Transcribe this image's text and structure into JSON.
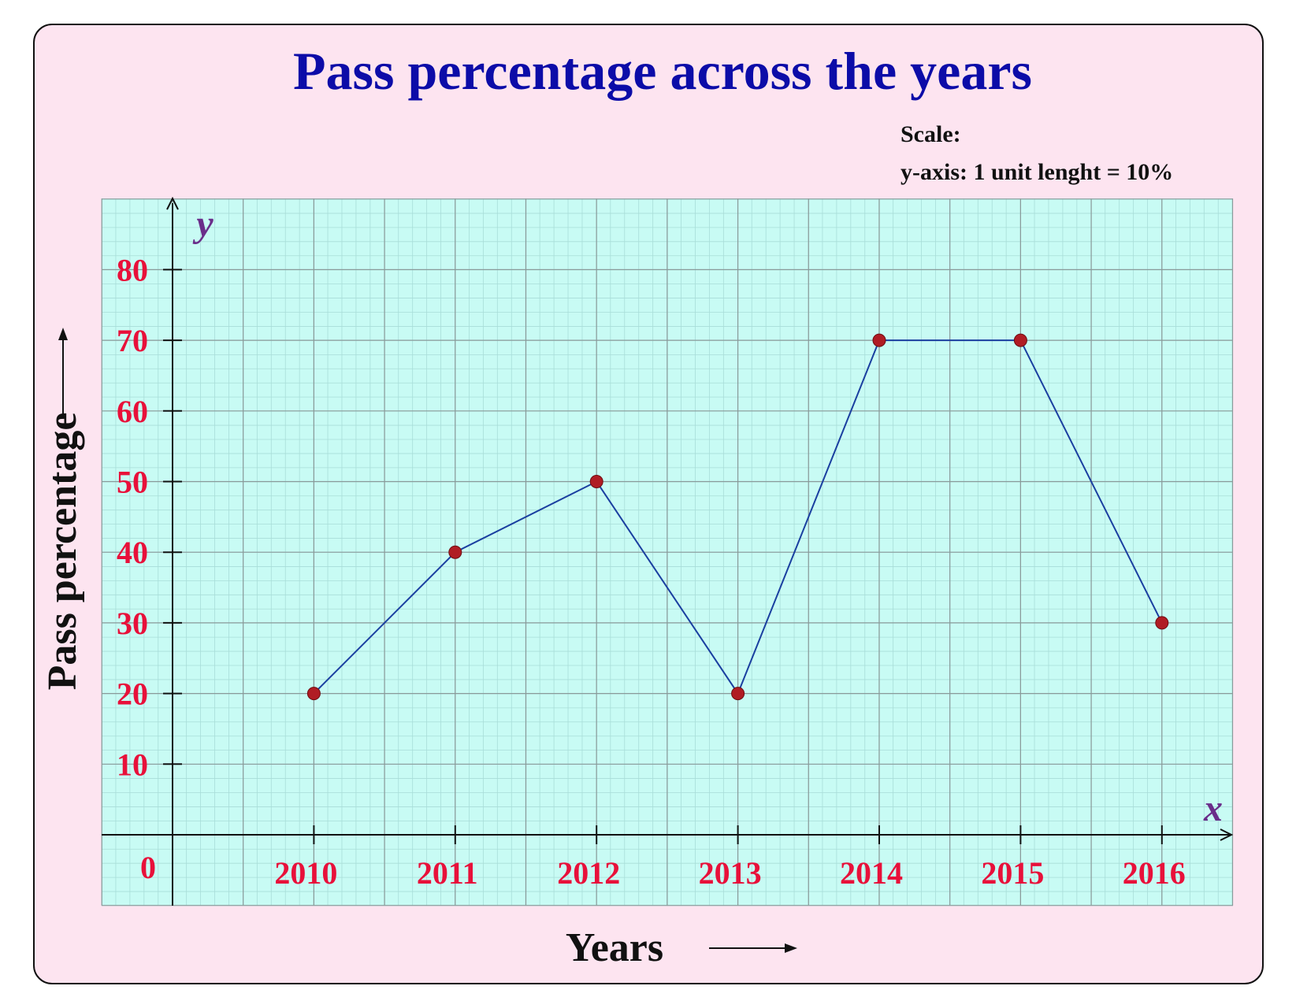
{
  "chart_data": {
    "type": "line",
    "title": "Pass percentage across the years",
    "scale_heading": "Scale:",
    "scale_note": "y-axis: 1 unit lenght = 10%",
    "xlabel": "Years",
    "ylabel": "Pass percentage",
    "x_axis_letter": "x",
    "y_axis_letter": "y",
    "origin_label": "0",
    "categories": [
      "2010",
      "2011",
      "2012",
      "2013",
      "2014",
      "2015",
      "2016"
    ],
    "series": [
      {
        "values": [
          20,
          40,
          50,
          20,
          70,
          70,
          30
        ]
      }
    ],
    "yticks": [
      10,
      20,
      30,
      40,
      50,
      60,
      70,
      80
    ],
    "ylim": [
      0,
      80
    ],
    "grid": true,
    "colors": {
      "line": "#1a3fa0",
      "marker": "#b01c24",
      "plot_background": "#c8fbf4",
      "minor_grid": "#a8ddd8",
      "major_grid": "#8a9a9a",
      "frame_background": "#fde4f0"
    }
  }
}
